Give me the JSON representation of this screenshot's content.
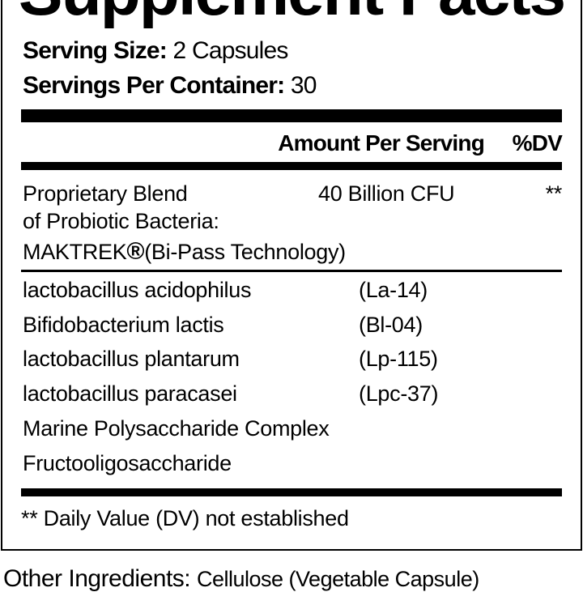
{
  "title": "Supplement Facts",
  "serving_size": {
    "label": "Serving Size:",
    "value": "2 Capsules"
  },
  "servings_per_container": {
    "label": "Servings Per Container:",
    "value": "30"
  },
  "columns": {
    "amount": "Amount Per Serving",
    "dv": "%DV"
  },
  "blend": {
    "lines": [
      "Proprietary Blend",
      "of Probiotic Bacteria:",
      "MAKTREK",
      "(Bi-Pass Technology)"
    ],
    "registered": "®",
    "amount": "40 Billion CFU",
    "dv": "**"
  },
  "ingredients": [
    {
      "name": "lactobacillus acidophilus",
      "strain": "(La-14)"
    },
    {
      "name": "Bifidobacterium lactis",
      "strain": "(Bl-04)"
    },
    {
      "name": "lactobacillus plantarum",
      "strain": "(Lp-115)"
    },
    {
      "name": "lactobacillus paracasei",
      "strain": "(Lpc-37)"
    },
    {
      "name": "Marine Polysaccharide Complex",
      "strain": ""
    },
    {
      "name": "Fructooligosaccharide",
      "strain": ""
    }
  ],
  "footnote": "** Daily Value (DV) not established",
  "other_ingredients": {
    "label": "Other Ingredients:",
    "value": "Cellulose (Vegetable Capsule)"
  }
}
